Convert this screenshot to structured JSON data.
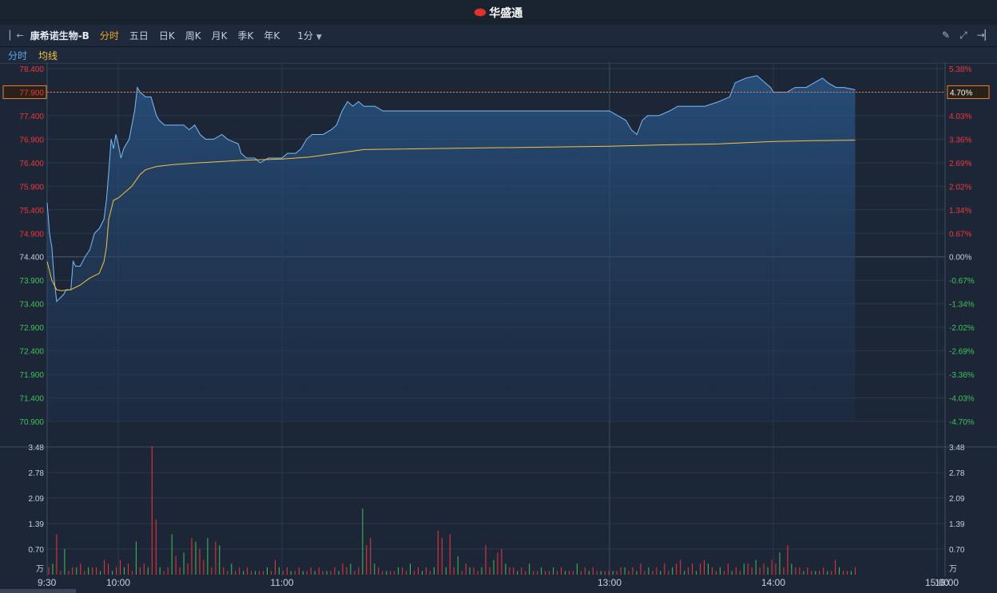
{
  "brand": {
    "name": "华盛通",
    "icon": "weibo-eye-logo-icon",
    "color": "#e0322a"
  },
  "toolbar": {
    "stock_name": "康希诺生物-B",
    "tabs": [
      "分时",
      "五日",
      "日K",
      "周K",
      "月K",
      "季K",
      "年K"
    ],
    "active_tab": "分时",
    "interval": "1分",
    "icons": [
      "pencil-icon",
      "fullscreen-icon",
      "expand-right-icon"
    ]
  },
  "legend": {
    "price_label": "分时",
    "avg_label": "均线"
  },
  "current": {
    "price": "77.900",
    "pct": "4.70%"
  },
  "colors": {
    "up": "#f0383b",
    "down": "#3fc35a",
    "price_line": "#7cbcf5",
    "avg_line": "#f5c242",
    "grid": "#2b384c"
  },
  "chart_data": [
    {
      "type": "line",
      "title": "",
      "prev_close": 74.4,
      "y_ticks": [
        "78.400",
        "77.900",
        "77.400",
        "76.900",
        "76.400",
        "75.900",
        "75.400",
        "74.900",
        "74.400",
        "73.900",
        "73.400",
        "72.900",
        "72.400",
        "71.900",
        "71.400",
        "70.900"
      ],
      "pct_ticks": [
        "5.38%",
        "4.70%",
        "4.03%",
        "3.36%",
        "2.69%",
        "2.02%",
        "1.34%",
        "0.67%",
        "0.00%",
        "-0.67%",
        "-1.34%",
        "-2.02%",
        "-2.69%",
        "-3.36%",
        "-4.03%",
        "-4.70%"
      ],
      "ylim": [
        70.9,
        78.4
      ],
      "x_ticks": [
        "9:30",
        "10:00",
        "11:00",
        "13:00",
        "14:00",
        "15:00",
        "16:00"
      ],
      "series": [
        {
          "name": "分时",
          "points": [
            [
              "9:30",
              75.55
            ],
            [
              "9:31",
              74.9
            ],
            [
              "9:32",
              74.6
            ],
            [
              "9:33",
              73.9
            ],
            [
              "9:34",
              73.45
            ],
            [
              "9:35",
              73.5
            ],
            [
              "9:37",
              73.6
            ],
            [
              "9:38",
              73.7
            ],
            [
              "9:40",
              73.7
            ],
            [
              "9:41",
              74.3
            ],
            [
              "9:42",
              74.2
            ],
            [
              "9:44",
              74.2
            ],
            [
              "9:46",
              74.4
            ],
            [
              "9:48",
              74.55
            ],
            [
              "9:50",
              74.9
            ],
            [
              "9:52",
              75.0
            ],
            [
              "9:54",
              75.2
            ],
            [
              "9:55",
              75.6
            ],
            [
              "9:56",
              76.2
            ],
            [
              "9:57",
              76.9
            ],
            [
              "9:58",
              76.7
            ],
            [
              "9:59",
              77.0
            ],
            [
              "10:00",
              76.8
            ],
            [
              "10:01",
              76.5
            ],
            [
              "10:02",
              76.7
            ],
            [
              "10:04",
              76.9
            ],
            [
              "10:05",
              77.2
            ],
            [
              "10:06",
              77.5
            ],
            [
              "10:07",
              78.0
            ],
            [
              "10:08",
              77.9
            ],
            [
              "10:10",
              77.8
            ],
            [
              "10:12",
              77.8
            ],
            [
              "10:14",
              77.4
            ],
            [
              "10:15",
              77.3
            ],
            [
              "10:17",
              77.2
            ],
            [
              "10:20",
              77.2
            ],
            [
              "10:24",
              77.2
            ],
            [
              "10:26",
              77.1
            ],
            [
              "10:28",
              77.2
            ],
            [
              "10:30",
              77.0
            ],
            [
              "10:32",
              76.9
            ],
            [
              "10:35",
              76.9
            ],
            [
              "10:38",
              77.0
            ],
            [
              "10:40",
              76.9
            ],
            [
              "10:44",
              76.8
            ],
            [
              "10:45",
              76.6
            ],
            [
              "10:47",
              76.5
            ],
            [
              "10:50",
              76.5
            ],
            [
              "10:52",
              76.4
            ],
            [
              "10:55",
              76.5
            ],
            [
              "11:00",
              76.5
            ],
            [
              "11:02",
              76.6
            ],
            [
              "11:05",
              76.6
            ],
            [
              "11:07",
              76.7
            ],
            [
              "11:09",
              76.9
            ],
            [
              "11:11",
              77.0
            ],
            [
              "11:15",
              77.0
            ],
            [
              "11:18",
              77.1
            ],
            [
              "11:20",
              77.2
            ],
            [
              "11:22",
              77.5
            ],
            [
              "11:24",
              77.7
            ],
            [
              "11:26",
              77.6
            ],
            [
              "11:28",
              77.7
            ],
            [
              "11:30",
              77.6
            ],
            [
              "11:34",
              77.6
            ],
            [
              "11:37",
              77.5
            ],
            [
              "11:42",
              77.5
            ],
            [
              "11:50",
              77.5
            ],
            [
              "11:55",
              77.5
            ],
            [
              "13:00",
              77.5
            ],
            [
              "13:03",
              77.4
            ],
            [
              "13:06",
              77.3
            ],
            [
              "13:08",
              77.1
            ],
            [
              "13:10",
              77.0
            ],
            [
              "13:12",
              77.3
            ],
            [
              "13:14",
              77.4
            ],
            [
              "13:18",
              77.4
            ],
            [
              "13:22",
              77.5
            ],
            [
              "13:25",
              77.6
            ],
            [
              "13:30",
              77.6
            ],
            [
              "13:35",
              77.6
            ],
            [
              "13:40",
              77.7
            ],
            [
              "13:44",
              77.8
            ],
            [
              "13:46",
              78.1
            ],
            [
              "13:50",
              78.2
            ],
            [
              "13:54",
              78.25
            ],
            [
              "13:57",
              78.1
            ],
            [
              "13:59",
              78.0
            ],
            [
              "14:00",
              77.9
            ],
            [
              "14:02",
              77.9
            ],
            [
              "14:05",
              77.9
            ],
            [
              "14:08",
              78.0
            ],
            [
              "14:12",
              78.0
            ],
            [
              "14:15",
              78.1
            ],
            [
              "14:18",
              78.2
            ],
            [
              "14:20",
              78.1
            ],
            [
              "14:23",
              78.0
            ],
            [
              "14:26",
              78.0
            ],
            [
              "14:30",
              77.95
            ]
          ]
        },
        {
          "name": "均线",
          "points": [
            [
              "9:30",
              74.3
            ],
            [
              "9:32",
              73.9
            ],
            [
              "9:34",
              73.7
            ],
            [
              "9:36",
              73.68
            ],
            [
              "9:40",
              73.7
            ],
            [
              "9:44",
              73.8
            ],
            [
              "9:48",
              73.95
            ],
            [
              "9:52",
              74.05
            ],
            [
              "9:54",
              74.3
            ],
            [
              "9:55",
              74.6
            ],
            [
              "9:56",
              75.2
            ],
            [
              "9:58",
              75.6
            ],
            [
              "10:00",
              75.65
            ],
            [
              "10:03",
              75.8
            ],
            [
              "10:05",
              75.9
            ],
            [
              "10:08",
              76.15
            ],
            [
              "10:10",
              76.25
            ],
            [
              "10:14",
              76.32
            ],
            [
              "10:20",
              76.36
            ],
            [
              "10:30",
              76.4
            ],
            [
              "10:45",
              76.45
            ],
            [
              "11:00",
              76.48
            ],
            [
              "11:10",
              76.52
            ],
            [
              "11:20",
              76.6
            ],
            [
              "11:30",
              76.68
            ],
            [
              "13:00",
              76.75
            ],
            [
              "13:20",
              76.78
            ],
            [
              "13:40",
              76.8
            ],
            [
              "14:00",
              76.85
            ],
            [
              "14:15",
              76.87
            ],
            [
              "14:30",
              76.88
            ]
          ]
        }
      ]
    },
    {
      "type": "bar",
      "title": "",
      "ylabel": "万",
      "y_ticks": [
        "3.48",
        "2.78",
        "2.09",
        "1.39",
        "0.70"
      ],
      "ylim": [
        0,
        3.48
      ],
      "series": [
        {
          "name": "volume",
          "values": [
            0.2,
            0.3,
            1.1,
            0.1,
            0.7,
            0.1,
            0.2,
            0.2,
            0.3,
            0.1,
            0.2,
            0.2,
            0.2,
            0.1,
            0.4,
            0.3,
            0.1,
            0.2,
            0.4,
            0.2,
            0.3,
            0.1,
            0.9,
            0.2,
            0.3,
            0.2,
            3.5,
            1.5,
            0.2,
            0.1,
            0.2,
            1.1,
            0.5,
            0.2,
            0.6,
            0.3,
            1.0,
            0.9,
            0.7,
            0.4,
            1.0,
            0.2,
            0.9,
            0.8,
            0.2,
            0.1,
            0.3,
            0.1,
            0.2,
            0.1,
            0.2,
            0.1,
            0.1,
            0.1,
            0.1,
            0.2,
            0.1,
            0.4,
            0.2,
            0.1,
            0.2,
            0.1,
            0.1,
            0.2,
            0.1,
            0.1,
            0.2,
            0.1,
            0.2,
            0.1,
            0.1,
            0.1,
            0.2,
            0.1,
            0.3,
            0.2,
            0.3,
            0.1,
            0.2,
            1.8,
            0.8,
            1.0,
            0.3,
            0.2,
            0.1,
            0.1,
            0.1,
            0.1,
            0.2,
            0.2,
            0.1,
            0.3,
            0.1,
            0.2,
            0.1,
            0.2,
            0.1,
            0.2,
            1.2,
            1.0,
            0.2,
            1.1,
            0.2,
            0.5,
            0.1,
            0.3,
            0.2,
            0.2,
            0.1,
            0.2,
            0.8,
            0.2,
            0.4,
            0.6,
            0.7,
            0.3,
            0.2,
            0.2,
            0.1,
            0.2,
            0.1,
            0.3,
            0.1,
            0.1,
            0.2,
            0.1,
            0.1,
            0.2,
            0.1,
            0.2,
            0.1,
            0.1,
            0.1,
            0.3,
            0.1,
            0.2,
            0.1,
            0.2,
            0.1,
            0.1,
            0.1,
            0.1,
            0.1,
            0.1,
            0.2,
            0.2,
            0.1,
            0.2,
            0.1,
            0.3,
            0.1,
            0.2,
            0.1,
            0.2,
            0.1,
            0.3,
            0.1,
            0.2,
            0.3,
            0.4,
            0.1,
            0.2,
            0.3,
            0.1,
            0.3,
            0.4,
            0.3,
            0.2,
            0.1,
            0.2,
            0.1,
            0.3,
            0.1,
            0.2,
            0.1,
            0.3,
            0.3,
            0.2,
            0.4,
            0.2,
            0.3,
            0.2,
            0.4,
            0.3,
            0.6,
            0.2,
            0.8,
            0.3,
            0.2,
            0.2,
            0.1,
            0.2,
            0.1,
            0.1,
            0.1,
            0.2,
            0.1,
            0.1,
            0.4,
            0.2,
            0.1,
            0.1,
            0.1,
            0.2
          ]
        }
      ]
    }
  ]
}
